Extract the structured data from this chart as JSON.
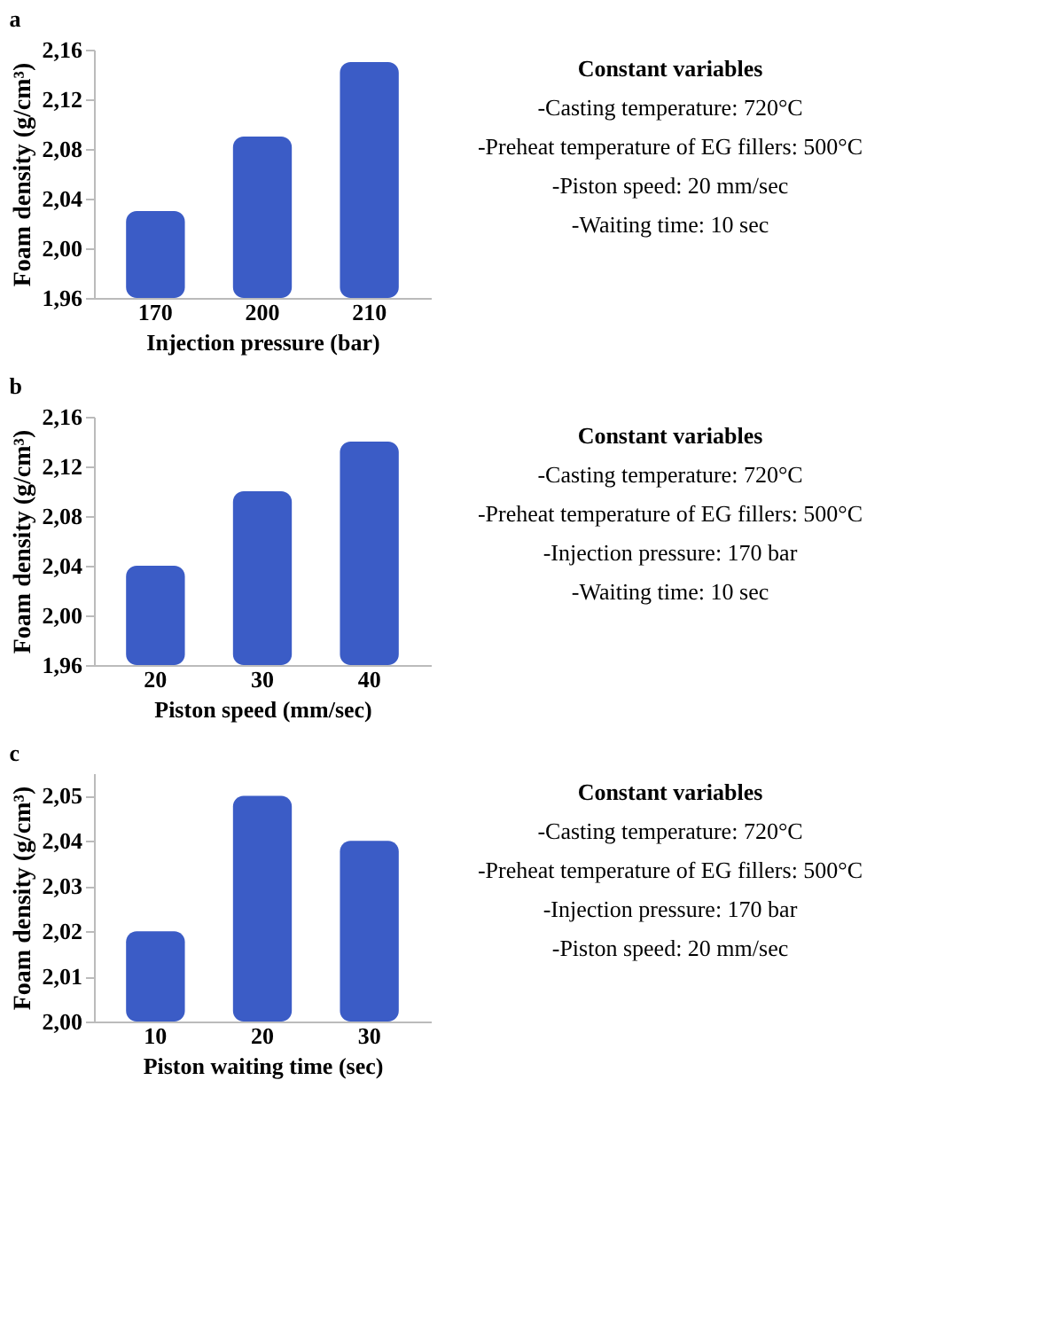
{
  "chart_data": [
    {
      "type": "bar",
      "title": "a",
      "xlabel": "Injection pressure (bar)",
      "ylabel": "Foam density (g/cm³)",
      "categories": [
        "170",
        "200",
        "210"
      ],
      "values": [
        2.03,
        2.09,
        2.15
      ],
      "color": "#3b5cc6",
      "ylim": [
        1.96,
        2.16
      ],
      "yticks": [
        {
          "value": 1.96,
          "label": "1,96"
        },
        {
          "value": 2.0,
          "label": "2,00"
        },
        {
          "value": 2.04,
          "label": "2,04"
        },
        {
          "value": 2.08,
          "label": "2,08"
        },
        {
          "value": 2.12,
          "label": "2,12"
        },
        {
          "value": 2.16,
          "label": "2,16"
        }
      ],
      "grid": false,
      "annotations": [
        "Constant variables",
        "-Casting temperature: 720°C",
        "-Preheat temperature of EG fillers: 500°C",
        "-Piston speed: 20 mm/sec",
        "-Waiting time: 10 sec"
      ]
    },
    {
      "type": "bar",
      "title": "b",
      "xlabel": "Piston speed (mm/sec)",
      "ylabel": "Foam density (g/cm³)",
      "categories": [
        "20",
        "30",
        "40"
      ],
      "values": [
        2.04,
        2.1,
        2.14
      ],
      "color": "#3b5cc6",
      "ylim": [
        1.96,
        2.16
      ],
      "yticks": [
        {
          "value": 1.96,
          "label": "1,96"
        },
        {
          "value": 2.0,
          "label": "2,00"
        },
        {
          "value": 2.04,
          "label": "2,04"
        },
        {
          "value": 2.08,
          "label": "2,08"
        },
        {
          "value": 2.12,
          "label": "2,12"
        },
        {
          "value": 2.16,
          "label": "2,16"
        }
      ],
      "grid": false,
      "annotations": [
        "Constant variables",
        "-Casting temperature: 720°C",
        "-Preheat temperature of EG fillers: 500°C",
        "-Injection pressure: 170 bar",
        "-Waiting time: 10 sec"
      ]
    },
    {
      "type": "bar",
      "title": "c",
      "xlabel": "Piston waiting time (sec)",
      "ylabel": "Foam density (g/cm³)",
      "categories": [
        "10",
        "20",
        "30"
      ],
      "values": [
        2.02,
        2.05,
        2.04
      ],
      "color": "#3b5cc6",
      "ylim": [
        2.0,
        2.055
      ],
      "yticks": [
        {
          "value": 2.0,
          "label": "2,00"
        },
        {
          "value": 2.01,
          "label": "2,01"
        },
        {
          "value": 2.02,
          "label": "2,02"
        },
        {
          "value": 2.03,
          "label": "2,03"
        },
        {
          "value": 2.04,
          "label": "2,04"
        },
        {
          "value": 2.05,
          "label": "2,05"
        }
      ],
      "grid": false,
      "annotations": [
        "Constant variables",
        "-Casting temperature: 720°C",
        "-Preheat temperature of EG fillers: 500°C",
        "-Injection pressure: 170 bar",
        "-Piston speed: 20 mm/sec"
      ]
    }
  ]
}
